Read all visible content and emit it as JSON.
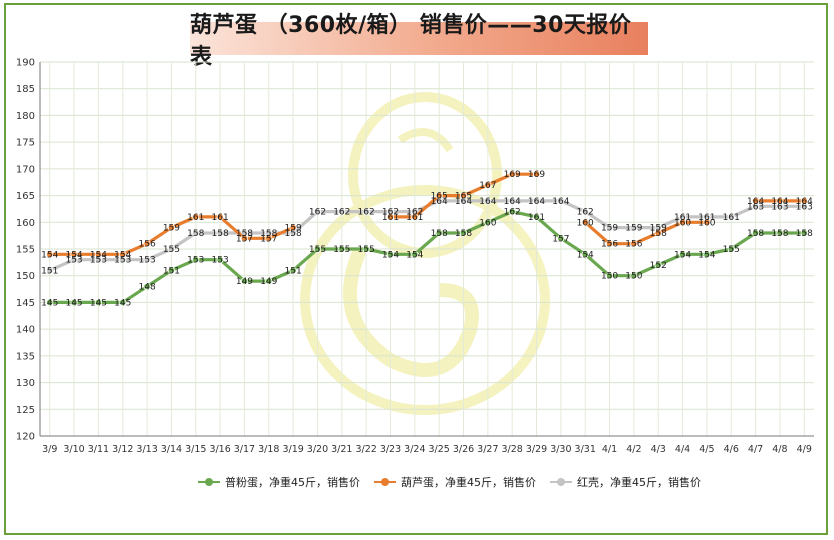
{
  "chart_data": {
    "type": "line",
    "title": "葫芦蛋 （360枚/箱） 销售价——30天报价表",
    "ylim": [
      120,
      190
    ],
    "yticks": [
      120,
      125,
      130,
      135,
      140,
      145,
      150,
      155,
      160,
      165,
      170,
      175,
      180,
      185,
      190
    ],
    "grid": true,
    "legend_position": "bottom",
    "categories": [
      "3/9",
      "3/10",
      "3/11",
      "3/12",
      "3/13",
      "3/14",
      "3/15",
      "3/16",
      "3/17",
      "3/18",
      "3/19",
      "3/20",
      "3/21",
      "3/22",
      "3/23",
      "3/24",
      "3/25",
      "3/26",
      "3/27",
      "3/28",
      "3/29",
      "3/30",
      "3/31",
      "4/1",
      "4/2",
      "4/3",
      "4/4",
      "4/5",
      "4/6",
      "4/7",
      "4/8",
      "4/9"
    ],
    "series": [
      {
        "name": "普粉蛋，净重45斤，销售价",
        "color": "#6aa84f",
        "values": [
          145,
          145,
          145,
          145,
          148,
          151,
          153,
          153,
          149,
          149,
          151,
          155,
          155,
          155,
          154,
          154,
          158,
          158,
          160,
          162,
          161,
          157,
          154,
          150,
          150,
          152,
          154,
          154,
          155,
          158,
          158,
          158
        ]
      },
      {
        "name": "葫芦蛋，净重45斤，销售价",
        "color": "#e87d2d",
        "values": [
          154,
          154,
          154,
          154,
          156,
          159,
          161,
          161,
          157,
          157,
          159,
          null,
          null,
          null,
          161,
          161,
          165,
          165,
          167,
          169,
          169,
          null,
          160,
          156,
          156,
          158,
          160,
          160,
          null,
          164,
          164,
          164
        ]
      },
      {
        "name": "红壳，净重45斤，销售价",
        "color": "#c4c4c4",
        "values": [
          151,
          153,
          153,
          153,
          153,
          155,
          158,
          158,
          158,
          158,
          158,
          162,
          162,
          162,
          162,
          162,
          164,
          164,
          164,
          164,
          164,
          164,
          162,
          159,
          159,
          159,
          161,
          161,
          161,
          163,
          163,
          163
        ]
      }
    ]
  }
}
